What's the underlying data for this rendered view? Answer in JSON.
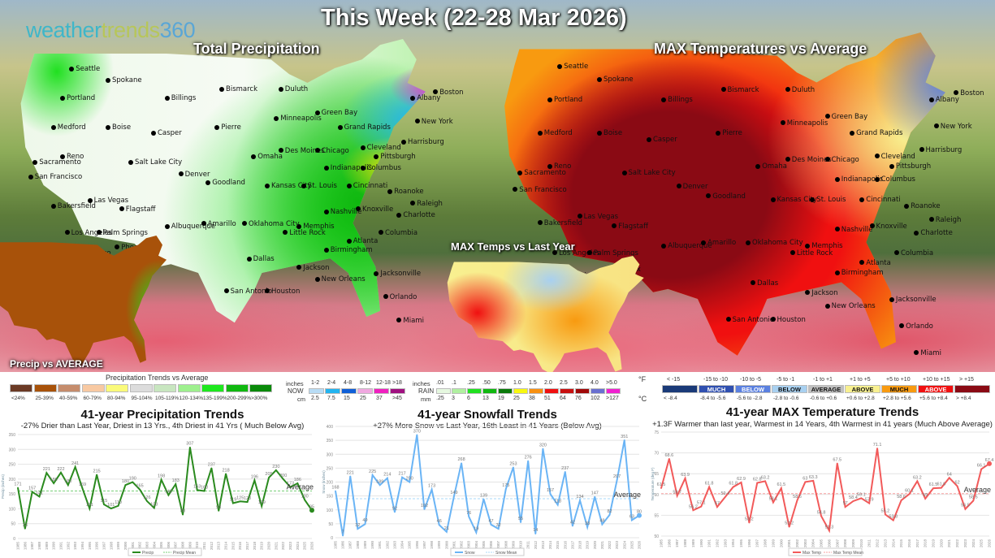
{
  "header": {
    "title": "This Week (22-28 Mar 2026)",
    "logo": {
      "part1": "weather",
      "part2": "trends",
      "part3": "360"
    }
  },
  "maps": {
    "precip": {
      "title": "Total Precipitation"
    },
    "max_temp": {
      "title": "MAX Temperatures vs Average"
    },
    "max_vs_last_year": {
      "title": "MAX Temps vs Last Year"
    },
    "precip_vs_avg": {
      "title": "Precip vs AVERAGE"
    },
    "cities": [
      "Seattle",
      "Spokane",
      "Portland",
      "Medford",
      "Boise",
      "Sacramento",
      "San Francisco",
      "Reno",
      "Salt Lake City",
      "Billings",
      "Casper",
      "Bismarck",
      "Pierre",
      "Duluth",
      "Minneapolis",
      "Green Bay",
      "Grand Rapids",
      "Omaha",
      "Des Moines",
      "Denver",
      "Goodland",
      "Kansas City",
      "St. Louis",
      "Chicago",
      "Indianapolis",
      "Cleveland",
      "Pittsburgh",
      "Columbus",
      "Harrisburg",
      "New York",
      "Boston",
      "Albany",
      "Roanoke",
      "Raleigh",
      "Charlotte",
      "Nashville",
      "Knoxville",
      "Memphis",
      "Little Rock",
      "Oklahoma City",
      "Atlanta",
      "Birmingham",
      "Columbia",
      "Jackson",
      "Jacksonville",
      "Orlando",
      "Miami",
      "Las Vegas",
      "Flagstaff",
      "Bakersfield",
      "Los Angeles",
      "Palm Springs",
      "San Diego",
      "Phoenix",
      "Albuquerque",
      "Amarillo",
      "Dallas",
      "San Antonio",
      "Houston",
      "New Orleans",
      "Cincinnati"
    ]
  },
  "legends": {
    "precip_trend": {
      "title": "Precipitation Trends vs Average",
      "items": [
        {
          "label": "<24%",
          "color": "#6b3a25"
        },
        {
          "label": "25-39%",
          "color": "#a8520a"
        },
        {
          "label": "40-59%",
          "color": "#c58c6c"
        },
        {
          "label": "60-79%",
          "color": "#f8c9a2"
        },
        {
          "label": "80-94%",
          "color": "#fafa7a"
        },
        {
          "label": "95-104%",
          "color": "#dcdcdc"
        },
        {
          "label": "105-119%",
          "color": "#c8e6c0"
        },
        {
          "label": "120-134%",
          "color": "#9ef08e"
        },
        {
          "label": "135-199%",
          "color": "#1ee81e"
        },
        {
          "label": "200-299%",
          "color": "#10b810"
        },
        {
          "label": ">300%",
          "color": "#0a8a0a"
        }
      ]
    },
    "snow": {
      "unit_top": "inches",
      "unit_bottom": "cm",
      "label": "NOW",
      "items": [
        {
          "in": "1-2",
          "cm": "2.5",
          "color": "#b8dcf5"
        },
        {
          "in": "2-4",
          "cm": "7.5",
          "color": "#22b4f0"
        },
        {
          "in": "4-8",
          "cm": "15",
          "color": "#1060d8"
        },
        {
          "in": "8-12",
          "cm": "25",
          "color": "#f0a8e0"
        },
        {
          "in": "12-18",
          "cm": "37",
          "color": "#f020c0"
        },
        {
          "in": ">18",
          "cm": ">45",
          "color": "#a01080"
        }
      ]
    },
    "rain": {
      "unit_top": "inches",
      "unit_bottom": "mm",
      "label": "RAIN",
      "items": [
        {
          "in": ".01",
          "mm": ".25",
          "color": "#e6f8e0"
        },
        {
          "in": ".1",
          "mm": "3",
          "color": "#b0f0a0"
        },
        {
          "in": ".25",
          "mm": "6",
          "color": "#20e020"
        },
        {
          "in": ".50",
          "mm": "13",
          "color": "#10b810"
        },
        {
          "in": ".75",
          "mm": "19",
          "color": "#0a7a0a"
        },
        {
          "in": "1.0",
          "mm": "25",
          "color": "#f8f810"
        },
        {
          "in": "1.5",
          "mm": "38",
          "color": "#f89010"
        },
        {
          "in": "2.0",
          "mm": "51",
          "color": "#f01010"
        },
        {
          "in": "2.5",
          "mm": "64",
          "color": "#c81010"
        },
        {
          "in": "3.0",
          "mm": "76",
          "color": "#a00808"
        },
        {
          "in": "4.0",
          "mm": "102",
          "color": "#6a70d0"
        },
        {
          "in": ">5.0",
          "mm": ">127",
          "color": "#f020d0"
        }
      ]
    },
    "temp": {
      "unit_f": "°F",
      "unit_c": "°C",
      "items": [
        {
          "f": "< -15",
          "c": "< -8.4",
          "color": "#1a3a78",
          "text": ""
        },
        {
          "f": "-15 to -10",
          "c": "-8.4 to -5.6",
          "color": "#3050b0",
          "text": "MUCH"
        },
        {
          "f": "-10 to -5",
          "c": "-5.6 to -2.8",
          "color": "#5a80e0",
          "text": "BELOW"
        },
        {
          "f": "-5 to -1",
          "c": "-2.8 to -0.6",
          "color": "#a8d0f0",
          "text": "BELOW"
        },
        {
          "f": "-1 to +1",
          "c": "-0.6 to +0.6",
          "color": "#c0c0c0",
          "text": "AVERAGE"
        },
        {
          "f": "+1 to +5",
          "c": "+0.6 to +2.8",
          "color": "#f8f090",
          "text": "ABOVE"
        },
        {
          "f": "+5 to +10",
          "c": "+2.8 to +5.6",
          "color": "#f89a10",
          "text": "MUCH"
        },
        {
          "f": "+10 to +15",
          "c": "+5.6 to +8.4",
          "color": "#f01010",
          "text": "ABOVE"
        },
        {
          "f": "> +15",
          "c": "> +8.4",
          "color": "#8a0a14",
          "text": ""
        }
      ]
    }
  },
  "chart_data": [
    {
      "type": "line",
      "title": "41-year Precipitation Trends",
      "subtitle": "-27% Drier than Last Year, Driest in 13 Yrs., 4th Driest in 41 Yrs ( Much Below Avg)",
      "ylabel": "Precip (inches)",
      "ylim": [
        0,
        350
      ],
      "yticks": [
        0,
        50,
        100,
        150,
        200,
        250,
        300,
        350
      ],
      "x": [
        1985,
        1986,
        1987,
        1988,
        1989,
        1990,
        1991,
        1992,
        1993,
        1994,
        1995,
        1996,
        1997,
        1998,
        1999,
        2000,
        2001,
        2002,
        2003,
        2004,
        2005,
        2006,
        2007,
        2008,
        2009,
        2010,
        2011,
        2012,
        2013,
        2014,
        2015,
        2016,
        2017,
        2018,
        2019,
        2020,
        2021,
        2022,
        2023,
        2024,
        2025,
        2026
      ],
      "series": [
        {
          "name": "Precip",
          "color": "#2a8a1e",
          "values": [
            171,
            33,
            157,
            141,
            221,
            186,
            222,
            180,
            241,
            169,
            101,
            215,
            115,
            101,
            110,
            180,
            190,
            165,
            126,
            103,
            198,
            146,
            183,
            80,
            307,
            163,
            160,
            237,
            93,
            218,
            119,
            125,
            123,
            196,
            109,
            205,
            230,
            200,
            173,
            186,
            130,
            95
          ]
        },
        {
          "name": "Precip Mean",
          "color": "#7ad07a",
          "mean": 160
        }
      ],
      "annotation": "Average"
    },
    {
      "type": "line",
      "title": "41-year Snowfall Trends",
      "subtitle": "+27% More Snow vs Last Year, 16th Least in 41 Years (Below Avg)",
      "ylabel": "Snow (inches)",
      "ylim": [
        0,
        400
      ],
      "yticks": [
        0,
        50,
        100,
        150,
        200,
        250,
        300,
        350,
        400
      ],
      "x": [
        1985,
        1986,
        1987,
        1988,
        1989,
        1990,
        1991,
        1992,
        1993,
        1994,
        1995,
        1996,
        1997,
        1998,
        1999,
        2000,
        2001,
        2002,
        2003,
        2004,
        2005,
        2006,
        2007,
        2008,
        2009,
        2010,
        2011,
        2012,
        2013,
        2014,
        2015,
        2016,
        2017,
        2018,
        2019,
        2020,
        2021,
        2022,
        2023,
        2024,
        2025,
        2026
      ],
      "series": [
        {
          "name": "Snow",
          "color": "#6ab4f5",
          "values": [
            168,
            7,
            221,
            32,
            49,
            225,
            189,
            214,
            92,
            217,
            200,
            370,
            102,
            173,
            46,
            21,
            149,
            268,
            76,
            19,
            139,
            47,
            32,
            175,
            253,
            55,
            276,
            14,
            320,
            157,
            118,
            237,
            42,
            134,
            38,
            147,
            48,
            82,
            207,
            351,
            63,
            80
          ]
        },
        {
          "name": "Snow Mean",
          "color": "#a8d8f8",
          "mean": 140
        }
      ],
      "annotation": "Average"
    },
    {
      "type": "line",
      "title": "41-year MAX Temperature Trends",
      "subtitle": "+1.3F Warmer than last year, Warmest in 14 Years, 4th Warmest in 41 years (Much Above Average)",
      "ylabel": "Temperature (deg F)",
      "ylim": [
        50,
        75
      ],
      "yticks": [
        50,
        55,
        60,
        65,
        70,
        75
      ],
      "x": [
        1985,
        1986,
        1987,
        1988,
        1989,
        1990,
        1991,
        1992,
        1993,
        1994,
        1995,
        1996,
        1997,
        1998,
        1999,
        2000,
        2001,
        2002,
        2003,
        2004,
        2005,
        2006,
        2007,
        2008,
        2009,
        2010,
        2011,
        2012,
        2013,
        2014,
        2015,
        2016,
        2017,
        2018,
        2019,
        2020,
        2021,
        2022,
        2023,
        2024,
        2025,
        2026
      ],
      "series": [
        {
          "name": "Max Temp",
          "color": "#f25a5a",
          "values": [
            61.5,
            68.6,
            59.7,
            63.9,
            56.2,
            57.1,
            61.8,
            57.0,
            59.4,
            61.8,
            62.9,
            53.2,
            62.8,
            63.2,
            58.1,
            61.5,
            52.2,
            58.6,
            63.0,
            63.3,
            54.8,
            51.3,
            67.5,
            57.0,
            58.4,
            59.1,
            57.9,
            71.1,
            55.2,
            53.8,
            58.6,
            60.1,
            63.2,
            59.0,
            61.5,
            61.6,
            64.0,
            62.0,
            56.5,
            58.5,
            66.1,
            67.4
          ]
        },
        {
          "name": "Max Temp Mean",
          "color": "#f8a0a0",
          "mean": 60.2
        }
      ],
      "annotation": "Average"
    }
  ]
}
